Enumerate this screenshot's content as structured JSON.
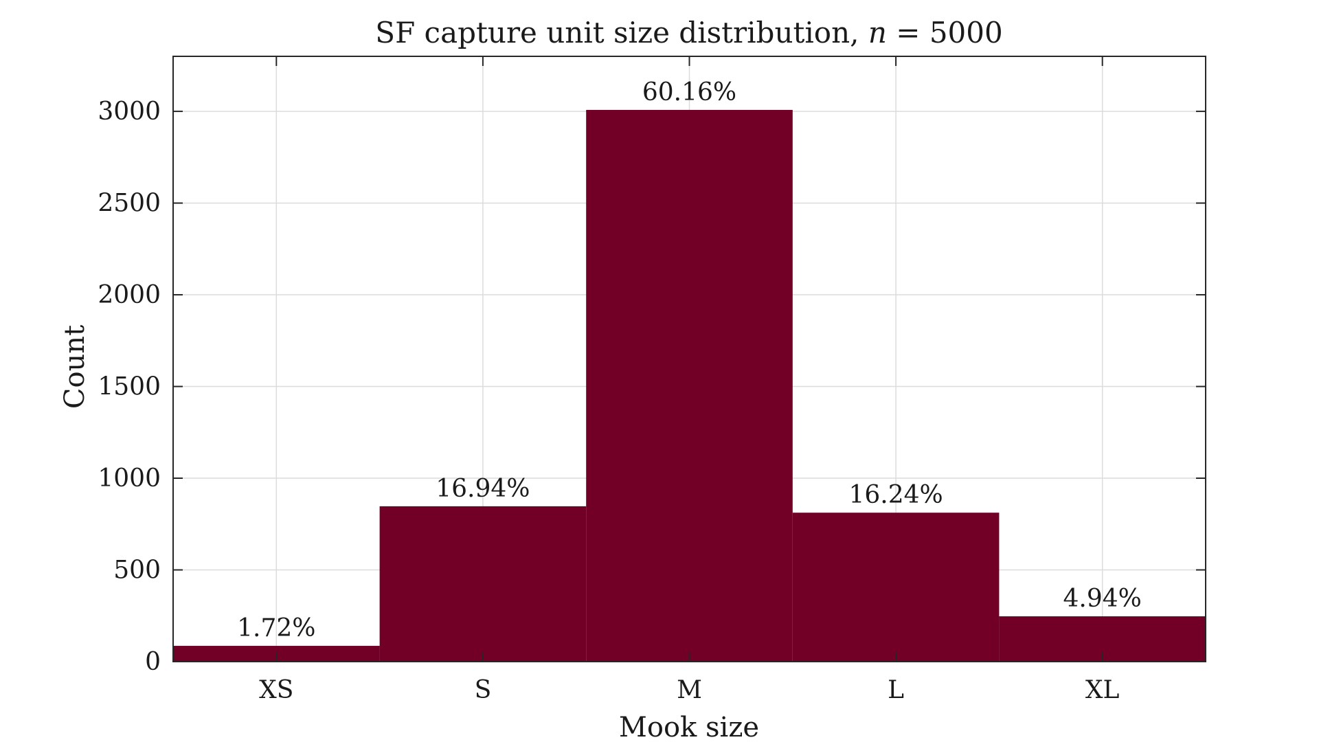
{
  "chart_data": {
    "type": "bar",
    "title": "SF capture unit size distribution, n = 5000",
    "title_parts": {
      "prefix": "SF capture unit size distribution, ",
      "variable": "n",
      "suffix": " = 5000"
    },
    "xlabel": "Mook size",
    "ylabel": "Count",
    "categories": [
      "XS",
      "S",
      "M",
      "L",
      "XL"
    ],
    "values": [
      86,
      847,
      3008,
      812,
      247
    ],
    "value_labels": [
      "1.72%",
      "16.94%",
      "60.16%",
      "16.24%",
      "4.94%"
    ],
    "ylim": [
      0,
      3300
    ],
    "yticks": [
      0,
      500,
      1000,
      1500,
      2000,
      2500,
      3000
    ],
    "ytick_labels": [
      "0",
      "500",
      "1000",
      "1500",
      "2000",
      "2500",
      "3000"
    ],
    "grid": true,
    "legend": false,
    "bar_color": "#720026"
  }
}
